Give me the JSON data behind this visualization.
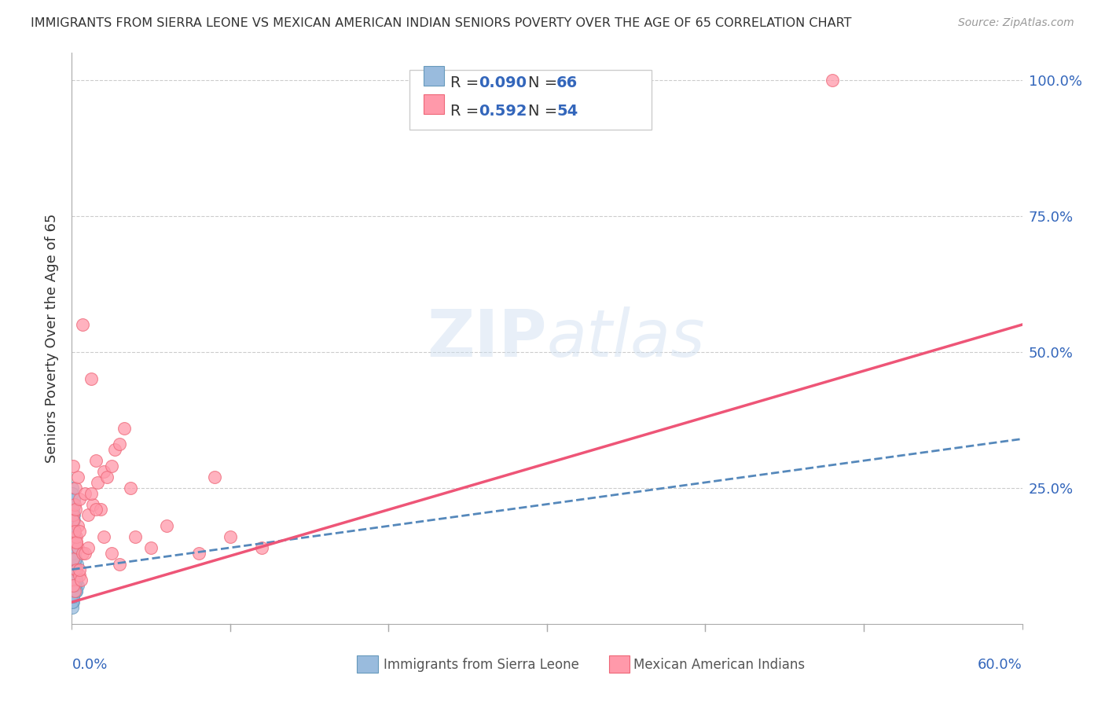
{
  "title": "IMMIGRANTS FROM SIERRA LEONE VS MEXICAN AMERICAN INDIAN SENIORS POVERTY OVER THE AGE OF 65 CORRELATION CHART",
  "source": "Source: ZipAtlas.com",
  "ylabel": "Seniors Poverty Over the Age of 65",
  "ytick_labels": [
    "",
    "25.0%",
    "50.0%",
    "75.0%",
    "100.0%"
  ],
  "ytick_values": [
    0,
    0.25,
    0.5,
    0.75,
    1.0
  ],
  "xlim": [
    0,
    0.6
  ],
  "ylim": [
    0,
    1.05
  ],
  "watermark": "ZIPatlas",
  "legend_r1_label": "R = ",
  "legend_r1_val": "0.090",
  "legend_n1_label": "N = ",
  "legend_n1_val": "66",
  "legend_r2_label": "R = ",
  "legend_r2_val": "0.592",
  "legend_n2_label": "N = ",
  "legend_n2_val": "54",
  "color_blue": "#99BBDD",
  "color_pink": "#FF99AA",
  "color_blue_dark": "#6699BB",
  "color_pink_dark": "#EE6677",
  "color_blue_line": "#5588BB",
  "color_pink_line": "#EE5577",
  "color_text_val": "#3366BB",
  "color_text_dark": "#333333",
  "sierra_leone_x": [
    0.0005,
    0.001,
    0.0008,
    0.0015,
    0.0005,
    0.001,
    0.002,
    0.0012,
    0.002,
    0.001,
    0.0008,
    0.003,
    0.0015,
    0.001,
    0.002,
    0.0005,
    0.003,
    0.002,
    0.0015,
    0.001,
    0.004,
    0.002,
    0.001,
    0.0005,
    0.003,
    0.0015,
    0.0008,
    0.001,
    0.0025,
    0.002,
    0.0015,
    0.0005,
    0.001,
    0.003,
    0.002,
    0.0005,
    0.0015,
    0.001,
    0.0025,
    0.0035,
    0.0005,
    0.002,
    0.001,
    0.0015,
    0.0008,
    0.003,
    0.001,
    0.002,
    0.0015,
    0.0005,
    0.0005,
    0.001,
    0.0015,
    0.001,
    0.002,
    0.0025,
    0.002,
    0.003,
    0.001,
    0.002,
    0.0015,
    0.003,
    0.0025,
    0.001,
    0.002,
    0.0018
  ],
  "sierra_leone_y": [
    0.05,
    0.22,
    0.18,
    0.14,
    0.08,
    0.1,
    0.12,
    0.06,
    0.09,
    0.16,
    0.04,
    0.07,
    0.2,
    0.05,
    0.08,
    0.25,
    0.06,
    0.13,
    0.09,
    0.17,
    0.07,
    0.11,
    0.15,
    0.03,
    0.1,
    0.19,
    0.06,
    0.08,
    0.12,
    0.1,
    0.14,
    0.22,
    0.07,
    0.09,
    0.11,
    0.24,
    0.06,
    0.16,
    0.08,
    0.11,
    0.04,
    0.13,
    0.2,
    0.1,
    0.15,
    0.08,
    0.12,
    0.06,
    0.09,
    0.17,
    0.18,
    0.05,
    0.07,
    0.13,
    0.16,
    0.09,
    0.14,
    0.06,
    0.21,
    0.1,
    0.23,
    0.08,
    0.12,
    0.19,
    0.07,
    0.15
  ],
  "mex_indian_x": [
    0.0008,
    0.001,
    0.003,
    0.002,
    0.003,
    0.004,
    0.001,
    0.005,
    0.0008,
    0.004,
    0.002,
    0.003,
    0.0025,
    0.006,
    0.001,
    0.004,
    0.002,
    0.005,
    0.0008,
    0.0025,
    0.007,
    0.005,
    0.003,
    0.008,
    0.01,
    0.013,
    0.016,
    0.02,
    0.012,
    0.015,
    0.022,
    0.027,
    0.018,
    0.03,
    0.033,
    0.025,
    0.037,
    0.007,
    0.012,
    0.008,
    0.005,
    0.01,
    0.015,
    0.02,
    0.025,
    0.03,
    0.04,
    0.05,
    0.06,
    0.08,
    0.1,
    0.12,
    0.09,
    0.48
  ],
  "mex_indian_y": [
    0.12,
    0.08,
    0.1,
    0.06,
    0.15,
    0.18,
    0.07,
    0.09,
    0.2,
    0.14,
    0.22,
    0.16,
    0.25,
    0.08,
    0.19,
    0.27,
    0.17,
    0.1,
    0.29,
    0.21,
    0.13,
    0.23,
    0.15,
    0.24,
    0.2,
    0.22,
    0.26,
    0.28,
    0.24,
    0.3,
    0.27,
    0.32,
    0.21,
    0.33,
    0.36,
    0.29,
    0.25,
    0.55,
    0.45,
    0.13,
    0.17,
    0.14,
    0.21,
    0.16,
    0.13,
    0.11,
    0.16,
    0.14,
    0.18,
    0.13,
    0.16,
    0.14,
    0.27,
    1.0
  ],
  "sl_line_x": [
    0.0,
    0.6
  ],
  "sl_line_y": [
    0.1,
    0.34
  ],
  "mi_line_x": [
    0.0,
    0.6
  ],
  "mi_line_y": [
    0.04,
    0.55
  ]
}
